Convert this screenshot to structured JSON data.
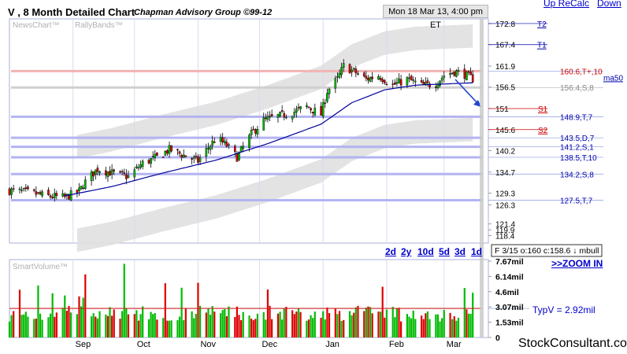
{
  "header": {
    "title": "V , 8 Month Detailed Chart",
    "subtitle": "Chapman Advisory Group ©99-12",
    "timestamp": "Mon 18 Mar 13, 4:00 pm ET",
    "links": [
      "Up ReCalc",
      "Down"
    ]
  },
  "panels": {
    "price_labels": [
      "NewsChart™",
      "RallyBands™"
    ],
    "volume_label": "SmartVolume™"
  },
  "quote_box": "F 3/15 o:160 c:158.6 ↓ mbull",
  "timeframes": [
    "2d",
    "2y",
    "10d",
    "5d",
    "3d",
    "1d"
  ],
  "zoom_label": ">>ZOOM IN",
  "typv_label": "TypV = 2.92mil",
  "footer": "StockConsultant.com",
  "colors": {
    "up": "#00bb00",
    "down": "#dd0000",
    "ma50": "#000099",
    "band": "#e0e0e0",
    "support_line": "#b3b3f2",
    "resistance_line": "#f2b3b3",
    "link": "#0000cc"
  },
  "chart_data": [
    {
      "type": "candlestick",
      "title": "V , 8 Month Detailed Chart",
      "x_months": [
        "Sep",
        "Oct",
        "Nov",
        "Dec",
        "Jan",
        "Feb",
        "Mar"
      ],
      "y_ticks": [
        172.8,
        167.4,
        161.9,
        156.5,
        151,
        145.6,
        140.2,
        134.7,
        129.3,
        126.3,
        121.4,
        119.9,
        118.4
      ],
      "ylim": [
        116.5,
        174
      ],
      "price_path": [
        {
          "date": "2012-08-01",
          "close": 130.0
        },
        {
          "date": "2012-08-10",
          "close": 129.5
        },
        {
          "date": "2012-08-20",
          "close": 128.5
        },
        {
          "date": "2012-08-28",
          "close": 128.2
        },
        {
          "date": "2012-09-04",
          "close": 129.8
        },
        {
          "date": "2012-09-08",
          "close": 133.0
        },
        {
          "date": "2012-09-13",
          "close": 135.5
        },
        {
          "date": "2012-09-20",
          "close": 134.5
        },
        {
          "date": "2012-09-28",
          "close": 133.5
        },
        {
          "date": "2012-10-05",
          "close": 137.0
        },
        {
          "date": "2012-10-12",
          "close": 138.5
        },
        {
          "date": "2012-10-18",
          "close": 140.5
        },
        {
          "date": "2012-10-25",
          "close": 139.0
        },
        {
          "date": "2012-11-01",
          "close": 137.5
        },
        {
          "date": "2012-11-06",
          "close": 141.0
        },
        {
          "date": "2012-11-10",
          "close": 143.5
        },
        {
          "date": "2012-11-15",
          "close": 141.5
        },
        {
          "date": "2012-11-20",
          "close": 138.5
        },
        {
          "date": "2012-11-27",
          "close": 144.5
        },
        {
          "date": "2012-12-03",
          "close": 148.0
        },
        {
          "date": "2012-12-10",
          "close": 149.0
        },
        {
          "date": "2012-12-17",
          "close": 150.0
        },
        {
          "date": "2012-12-24",
          "close": 151.5
        },
        {
          "date": "2012-12-31",
          "close": 149.5
        },
        {
          "date": "2013-01-03",
          "close": 155.5
        },
        {
          "date": "2013-01-08",
          "close": 158.5
        },
        {
          "date": "2013-01-11",
          "close": 161.9
        },
        {
          "date": "2013-01-16",
          "close": 160.5
        },
        {
          "date": "2013-01-22",
          "close": 158.5
        },
        {
          "date": "2013-01-28",
          "close": 159.5
        },
        {
          "date": "2013-02-04",
          "close": 157.0
        },
        {
          "date": "2013-02-11",
          "close": 158.5
        },
        {
          "date": "2013-02-19",
          "close": 156.8
        },
        {
          "date": "2013-02-25",
          "close": 157.5
        },
        {
          "date": "2013-03-01",
          "close": 159.5
        },
        {
          "date": "2013-03-06",
          "close": 160.5
        },
        {
          "date": "2013-03-11",
          "close": 159.8
        },
        {
          "date": "2013-03-15",
          "close": 158.6
        }
      ],
      "ma50_path": [
        {
          "date": "2012-08-28",
          "value": 128.6
        },
        {
          "date": "2012-09-20",
          "value": 131.0
        },
        {
          "date": "2012-10-15",
          "value": 134.5
        },
        {
          "date": "2012-11-10",
          "value": 137.8
        },
        {
          "date": "2012-12-05",
          "value": 142.0
        },
        {
          "date": "2012-12-31",
          "value": 147.0
        },
        {
          "date": "2013-01-15",
          "value": 152.5
        },
        {
          "date": "2013-01-31",
          "value": 155.8
        },
        {
          "date": "2013-02-15",
          "value": 157.0
        },
        {
          "date": "2013-03-15",
          "value": 157.6
        }
      ],
      "levels": [
        {
          "value": 172.8,
          "label": "T2",
          "kind": "target"
        },
        {
          "value": 167.4,
          "label": "T1",
          "kind": "target"
        },
        {
          "value": 160.6,
          "label": "160.6,T+,10",
          "kind": "resistance"
        },
        {
          "value": 156.4,
          "label": "156.4,S,8",
          "kind": "ma"
        },
        {
          "value": 151,
          "label": "S1",
          "kind": "support-marker"
        },
        {
          "value": 148.9,
          "label": "148.9,T,7",
          "kind": "support"
        },
        {
          "value": 145.6,
          "label": "S2",
          "kind": "support-marker"
        },
        {
          "value": 143.5,
          "label": "143.5,D,7",
          "kind": "support"
        },
        {
          "value": 141.2,
          "label": "141.2,S,1",
          "kind": "support"
        },
        {
          "value": 138.5,
          "label": "138.5,T,10",
          "kind": "support"
        },
        {
          "value": 134.2,
          "label": "134.2,S,8",
          "kind": "support"
        },
        {
          "value": 127.5,
          "label": "127.5,T,7",
          "kind": "support"
        }
      ],
      "ma50_label": "ma50"
    },
    {
      "type": "bar",
      "title": "SmartVolume™",
      "y_ticks": [
        "7.67mil",
        "6.14mil",
        "4.6mil",
        "3.07mil",
        "1.53mil",
        "0"
      ],
      "ylim": [
        0,
        7.67
      ],
      "typical_volume": 2.92,
      "units": "mil"
    }
  ]
}
